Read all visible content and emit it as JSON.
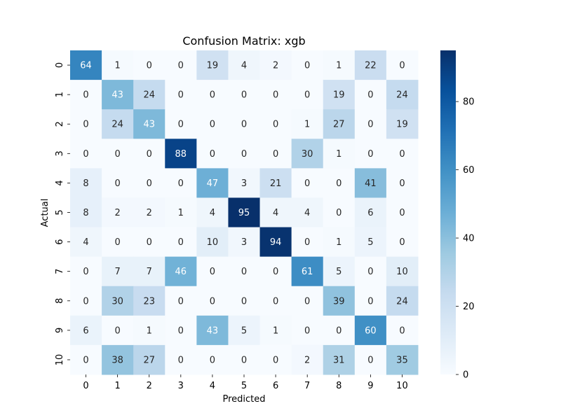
{
  "chart_data": {
    "type": "heatmap",
    "title": "Confusion Matrix: xgb",
    "xlabel": "Predicted",
    "ylabel": "Actual",
    "x_labels": [
      "0",
      "1",
      "2",
      "3",
      "4",
      "5",
      "6",
      "7",
      "8",
      "9",
      "10"
    ],
    "y_labels": [
      "0",
      "1",
      "2",
      "3",
      "4",
      "5",
      "6",
      "7",
      "8",
      "9",
      "10"
    ],
    "values": [
      [
        64,
        1,
        0,
        0,
        19,
        4,
        2,
        0,
        1,
        22,
        0
      ],
      [
        0,
        43,
        24,
        0,
        0,
        0,
        0,
        0,
        19,
        0,
        24
      ],
      [
        0,
        24,
        43,
        0,
        0,
        0,
        0,
        1,
        27,
        0,
        19
      ],
      [
        0,
        0,
        0,
        88,
        0,
        0,
        0,
        30,
        1,
        0,
        0
      ],
      [
        8,
        0,
        0,
        0,
        47,
        3,
        21,
        0,
        0,
        41,
        0
      ],
      [
        8,
        2,
        2,
        1,
        4,
        95,
        4,
        4,
        0,
        6,
        0
      ],
      [
        4,
        0,
        0,
        0,
        10,
        3,
        94,
        0,
        1,
        5,
        0
      ],
      [
        0,
        7,
        7,
        46,
        0,
        0,
        0,
        61,
        5,
        0,
        10
      ],
      [
        0,
        30,
        23,
        0,
        0,
        0,
        0,
        0,
        39,
        0,
        24
      ],
      [
        6,
        0,
        1,
        0,
        43,
        5,
        1,
        0,
        0,
        60,
        0
      ],
      [
        0,
        38,
        27,
        0,
        0,
        0,
        0,
        2,
        31,
        0,
        35
      ]
    ],
    "vmin": 0,
    "vmax": 95,
    "colormap": "Blues",
    "colorbar_ticks": [
      0,
      20,
      40,
      60,
      80
    ],
    "annotated": true
  }
}
